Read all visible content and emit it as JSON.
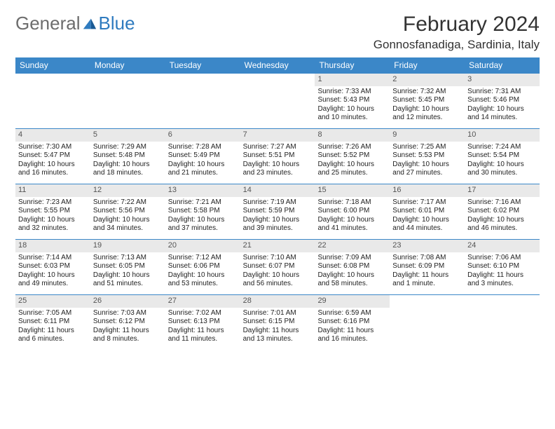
{
  "logo": {
    "text1": "General",
    "text2": "Blue"
  },
  "title": "February 2024",
  "location": "Gonnosfanadiga, Sardinia, Italy",
  "colors": {
    "header_bg": "#3b87c8",
    "header_text": "#ffffff",
    "band_bg": "#e9e9e9",
    "border": "#3b87c8",
    "logo_gray": "#6d6d6d",
    "logo_blue": "#2f7bbf"
  },
  "day_headers": [
    "Sunday",
    "Monday",
    "Tuesday",
    "Wednesday",
    "Thursday",
    "Friday",
    "Saturday"
  ],
  "weeks": [
    [
      {
        "empty": true
      },
      {
        "empty": true
      },
      {
        "empty": true
      },
      {
        "empty": true
      },
      {
        "num": "1",
        "sunrise": "Sunrise: 7:33 AM",
        "sunset": "Sunset: 5:43 PM",
        "daylight": "Daylight: 10 hours and 10 minutes."
      },
      {
        "num": "2",
        "sunrise": "Sunrise: 7:32 AM",
        "sunset": "Sunset: 5:45 PM",
        "daylight": "Daylight: 10 hours and 12 minutes."
      },
      {
        "num": "3",
        "sunrise": "Sunrise: 7:31 AM",
        "sunset": "Sunset: 5:46 PM",
        "daylight": "Daylight: 10 hours and 14 minutes."
      }
    ],
    [
      {
        "num": "4",
        "sunrise": "Sunrise: 7:30 AM",
        "sunset": "Sunset: 5:47 PM",
        "daylight": "Daylight: 10 hours and 16 minutes."
      },
      {
        "num": "5",
        "sunrise": "Sunrise: 7:29 AM",
        "sunset": "Sunset: 5:48 PM",
        "daylight": "Daylight: 10 hours and 18 minutes."
      },
      {
        "num": "6",
        "sunrise": "Sunrise: 7:28 AM",
        "sunset": "Sunset: 5:49 PM",
        "daylight": "Daylight: 10 hours and 21 minutes."
      },
      {
        "num": "7",
        "sunrise": "Sunrise: 7:27 AM",
        "sunset": "Sunset: 5:51 PM",
        "daylight": "Daylight: 10 hours and 23 minutes."
      },
      {
        "num": "8",
        "sunrise": "Sunrise: 7:26 AM",
        "sunset": "Sunset: 5:52 PM",
        "daylight": "Daylight: 10 hours and 25 minutes."
      },
      {
        "num": "9",
        "sunrise": "Sunrise: 7:25 AM",
        "sunset": "Sunset: 5:53 PM",
        "daylight": "Daylight: 10 hours and 27 minutes."
      },
      {
        "num": "10",
        "sunrise": "Sunrise: 7:24 AM",
        "sunset": "Sunset: 5:54 PM",
        "daylight": "Daylight: 10 hours and 30 minutes."
      }
    ],
    [
      {
        "num": "11",
        "sunrise": "Sunrise: 7:23 AM",
        "sunset": "Sunset: 5:55 PM",
        "daylight": "Daylight: 10 hours and 32 minutes."
      },
      {
        "num": "12",
        "sunrise": "Sunrise: 7:22 AM",
        "sunset": "Sunset: 5:56 PM",
        "daylight": "Daylight: 10 hours and 34 minutes."
      },
      {
        "num": "13",
        "sunrise": "Sunrise: 7:21 AM",
        "sunset": "Sunset: 5:58 PM",
        "daylight": "Daylight: 10 hours and 37 minutes."
      },
      {
        "num": "14",
        "sunrise": "Sunrise: 7:19 AM",
        "sunset": "Sunset: 5:59 PM",
        "daylight": "Daylight: 10 hours and 39 minutes."
      },
      {
        "num": "15",
        "sunrise": "Sunrise: 7:18 AM",
        "sunset": "Sunset: 6:00 PM",
        "daylight": "Daylight: 10 hours and 41 minutes."
      },
      {
        "num": "16",
        "sunrise": "Sunrise: 7:17 AM",
        "sunset": "Sunset: 6:01 PM",
        "daylight": "Daylight: 10 hours and 44 minutes."
      },
      {
        "num": "17",
        "sunrise": "Sunrise: 7:16 AM",
        "sunset": "Sunset: 6:02 PM",
        "daylight": "Daylight: 10 hours and 46 minutes."
      }
    ],
    [
      {
        "num": "18",
        "sunrise": "Sunrise: 7:14 AM",
        "sunset": "Sunset: 6:03 PM",
        "daylight": "Daylight: 10 hours and 49 minutes."
      },
      {
        "num": "19",
        "sunrise": "Sunrise: 7:13 AM",
        "sunset": "Sunset: 6:05 PM",
        "daylight": "Daylight: 10 hours and 51 minutes."
      },
      {
        "num": "20",
        "sunrise": "Sunrise: 7:12 AM",
        "sunset": "Sunset: 6:06 PM",
        "daylight": "Daylight: 10 hours and 53 minutes."
      },
      {
        "num": "21",
        "sunrise": "Sunrise: 7:10 AM",
        "sunset": "Sunset: 6:07 PM",
        "daylight": "Daylight: 10 hours and 56 minutes."
      },
      {
        "num": "22",
        "sunrise": "Sunrise: 7:09 AM",
        "sunset": "Sunset: 6:08 PM",
        "daylight": "Daylight: 10 hours and 58 minutes."
      },
      {
        "num": "23",
        "sunrise": "Sunrise: 7:08 AM",
        "sunset": "Sunset: 6:09 PM",
        "daylight": "Daylight: 11 hours and 1 minute."
      },
      {
        "num": "24",
        "sunrise": "Sunrise: 7:06 AM",
        "sunset": "Sunset: 6:10 PM",
        "daylight": "Daylight: 11 hours and 3 minutes."
      }
    ],
    [
      {
        "num": "25",
        "sunrise": "Sunrise: 7:05 AM",
        "sunset": "Sunset: 6:11 PM",
        "daylight": "Daylight: 11 hours and 6 minutes."
      },
      {
        "num": "26",
        "sunrise": "Sunrise: 7:03 AM",
        "sunset": "Sunset: 6:12 PM",
        "daylight": "Daylight: 11 hours and 8 minutes."
      },
      {
        "num": "27",
        "sunrise": "Sunrise: 7:02 AM",
        "sunset": "Sunset: 6:13 PM",
        "daylight": "Daylight: 11 hours and 11 minutes."
      },
      {
        "num": "28",
        "sunrise": "Sunrise: 7:01 AM",
        "sunset": "Sunset: 6:15 PM",
        "daylight": "Daylight: 11 hours and 13 minutes."
      },
      {
        "num": "29",
        "sunrise": "Sunrise: 6:59 AM",
        "sunset": "Sunset: 6:16 PM",
        "daylight": "Daylight: 11 hours and 16 minutes."
      },
      {
        "empty": true
      },
      {
        "empty": true
      }
    ]
  ]
}
